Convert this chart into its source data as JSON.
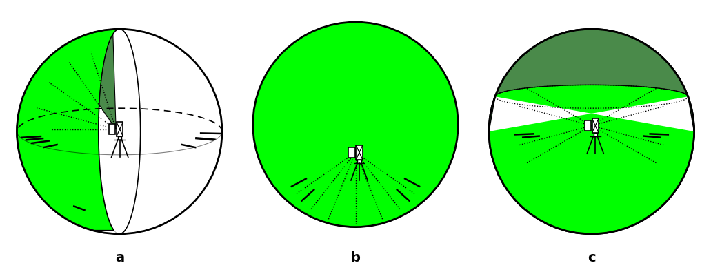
{
  "fig_width": 10.31,
  "fig_height": 3.82,
  "bg_color": "#ffffff",
  "green_bright": "#00ff00",
  "green_dark": "#4a8a4a",
  "black": "#000000",
  "label_a": "a",
  "label_b": "b",
  "label_c": "c",
  "label_fontsize": 14
}
